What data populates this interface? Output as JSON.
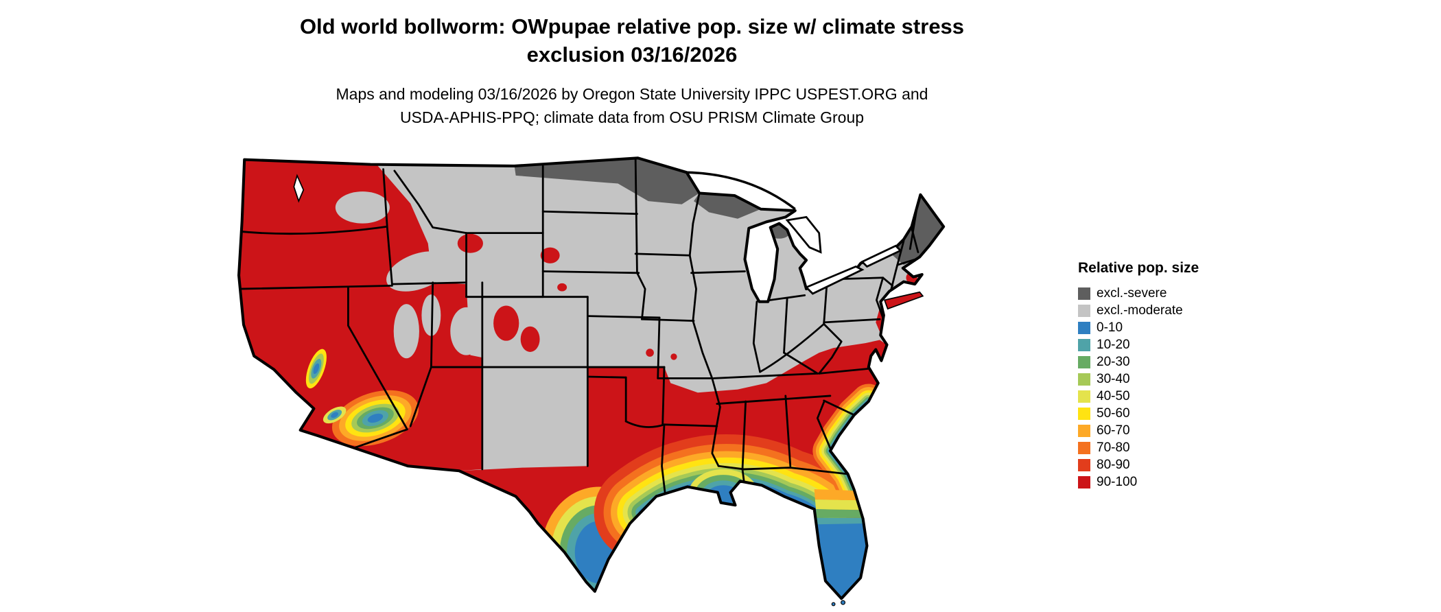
{
  "title": {
    "line1": "Old world bollworm: OWpupae relative pop. size w/ climate stress",
    "line2": "exclusion 03/16/2026"
  },
  "subtitle": {
    "line1": "Maps and modeling 03/16/2026 by Oregon State University IPPC USPEST.ORG and",
    "line2": "USDA-APHIS-PPQ; climate data from OSU PRISM Climate Group"
  },
  "legend": {
    "title": "Relative pop. size",
    "items": [
      {
        "key": "excl-severe",
        "label": "excl.-severe",
        "color": "#5e5e5e"
      },
      {
        "key": "excl-moderate",
        "label": "excl.-moderate",
        "color": "#c4c4c4"
      },
      {
        "key": "0-10",
        "label": "0-10",
        "color": "#2f7fc1"
      },
      {
        "key": "10-20",
        "label": "10-20",
        "color": "#4fa3a8"
      },
      {
        "key": "20-30",
        "label": "20-30",
        "color": "#67ab63"
      },
      {
        "key": "30-40",
        "label": "30-40",
        "color": "#a6c957"
      },
      {
        "key": "40-50",
        "label": "40-50",
        "color": "#e4e34c"
      },
      {
        "key": "50-60",
        "label": "50-60",
        "color": "#ffe312"
      },
      {
        "key": "60-70",
        "label": "60-70",
        "color": "#fda927"
      },
      {
        "key": "70-80",
        "label": "70-80",
        "color": "#f4711f"
      },
      {
        "key": "80-90",
        "label": "80-90",
        "color": "#e23d1c"
      },
      {
        "key": "90-100",
        "label": "90-100",
        "color": "#cc1418"
      }
    ]
  },
  "map": {
    "outline_color": "#000000",
    "region_label": "Continental United States"
  }
}
